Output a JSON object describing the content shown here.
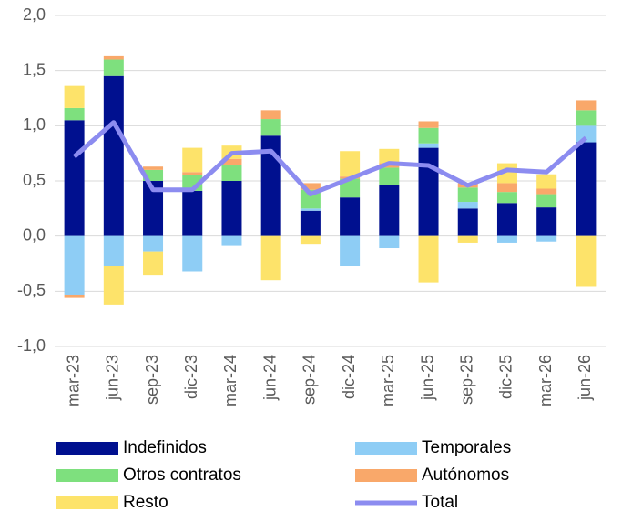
{
  "chart_data": {
    "type": "bar",
    "stacked": true,
    "categories": [
      "mar-23",
      "jun-23",
      "sep-23",
      "dic-23",
      "mar-24",
      "jun-24",
      "sep-24",
      "dic-24",
      "mar-25",
      "jun-25",
      "sep-25",
      "dic-25",
      "mar-26",
      "jun-26"
    ],
    "series": [
      {
        "name": "Indefinidos",
        "color": "#00108f",
        "values": [
          1.05,
          1.45,
          0.5,
          0.41,
          0.5,
          0.91,
          0.23,
          0.35,
          0.46,
          0.8,
          0.25,
          0.3,
          0.26,
          0.85
        ]
      },
      {
        "name": "Temporales",
        "color": "#8ecdf5",
        "values": [
          -0.53,
          -0.27,
          -0.14,
          -0.32,
          -0.09,
          0,
          0.02,
          -0.27,
          -0.11,
          0.04,
          0.06,
          -0.06,
          -0.05,
          0.15
        ]
      },
      {
        "name": "Otros contratos",
        "color": "#7ee07e",
        "values": [
          0.11,
          0.15,
          0.1,
          0.14,
          0.14,
          0.15,
          0.17,
          0.17,
          0.16,
          0.14,
          0.13,
          0.1,
          0.12,
          0.14
        ]
      },
      {
        "name": "Autónomos",
        "color": "#f9a86a",
        "values": [
          -0.03,
          0.03,
          0.03,
          0.03,
          0.06,
          0.08,
          0.06,
          0.02,
          0.04,
          0.06,
          0.04,
          0.08,
          0.05,
          0.09
        ]
      },
      {
        "name": "Resto",
        "color": "#fde36a",
        "values": [
          0.2,
          -0.35,
          -0.21,
          0.22,
          0.12,
          -0.4,
          -0.07,
          0.23,
          0.13,
          -0.42,
          -0.06,
          0.18,
          0.13,
          -0.46
        ]
      },
      {
        "name": "Total",
        "color": "#8c8cf0",
        "type": "line",
        "values": [
          0.72,
          1.03,
          0.42,
          0.42,
          0.75,
          0.77,
          0.38,
          0.52,
          0.66,
          0.64,
          0.46,
          0.6,
          0.58,
          0.89
        ]
      }
    ],
    "ylim": [
      -1.0,
      2.0
    ],
    "yticks": [
      {
        "value": -1.0,
        "label": "-1,0"
      },
      {
        "value": -0.5,
        "label": "-0,5"
      },
      {
        "value": 0,
        "label": "0,0"
      },
      {
        "value": 0.5,
        "label": "0,5"
      },
      {
        "value": 1.0,
        "label": "1,0"
      },
      {
        "value": 1.5,
        "label": "1,5"
      },
      {
        "value": 2.0,
        "label": "2,0"
      }
    ],
    "grid": true,
    "legend": "bottom"
  }
}
